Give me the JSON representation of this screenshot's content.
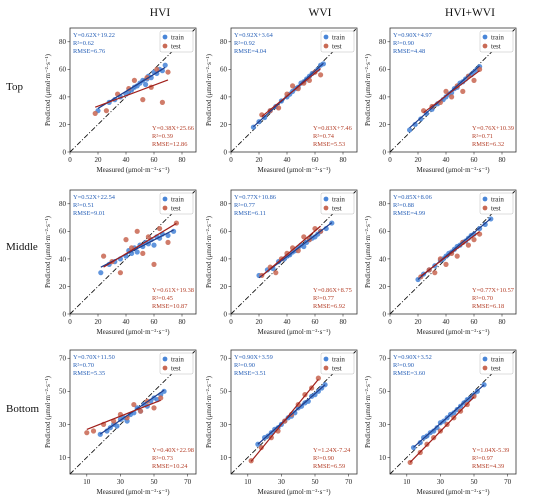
{
  "columns": [
    "HVI",
    "WVI",
    "HVI+WVI"
  ],
  "rows": [
    "Top",
    "Middle",
    "Bottom"
  ],
  "legend": {
    "train": "train",
    "test": "test"
  },
  "colors": {
    "train_point": "#4a86d8",
    "test_point": "#c96a55",
    "train_line": "#1f3d8c",
    "test_line": "#a01f1a",
    "reference": "#111111"
  },
  "axis_text": {
    "xlabel": "Measured (μmol·m⁻²·s⁻¹)",
    "ylabel": "Predicted (μmol·m⁻²·s⁻¹)"
  },
  "chart_data": [
    {
      "row": "Top",
      "column": "HVI",
      "type": "scatter",
      "lim": [
        0,
        90
      ],
      "ticks": [
        0,
        20,
        40,
        60,
        80
      ],
      "train": {
        "equation": "Y=0.62X+19.22",
        "r2": "R²=0.62",
        "rmse": "RMSE=6.76",
        "slope": 0.62,
        "intercept": 19.22,
        "x": [
          20,
          28,
          32,
          36,
          40,
          42,
          44,
          46,
          48,
          50,
          52,
          54,
          55,
          56,
          58,
          60,
          62,
          64,
          66,
          68
        ],
        "y": [
          30,
          36,
          38,
          40,
          42,
          44,
          45,
          47,
          48,
          50,
          52,
          49,
          53,
          55,
          54,
          58,
          57,
          60,
          59,
          63
        ]
      },
      "test": {
        "equation": "Y=0.38X+25.66",
        "r2": "R²=0.39",
        "rmse": "RMSE=12.86",
        "slope": 0.38,
        "intercept": 25.66,
        "x": [
          18,
          26,
          34,
          42,
          46,
          52,
          55,
          58,
          62,
          66,
          70
        ],
        "y": [
          28,
          30,
          42,
          46,
          52,
          38,
          54,
          47,
          60,
          36,
          58
        ]
      }
    },
    {
      "row": "Top",
      "column": "WVI",
      "type": "scatter",
      "lim": [
        0,
        90
      ],
      "ticks": [
        0,
        20,
        40,
        60,
        80
      ],
      "train": {
        "equation": "Y=0.92X+3.64",
        "r2": "R²=0.92",
        "rmse": "RMSE=4.04",
        "slope": 0.92,
        "intercept": 3.64,
        "x": [
          16,
          20,
          24,
          28,
          32,
          36,
          40,
          42,
          44,
          46,
          48,
          50,
          52,
          54,
          56,
          58,
          60,
          62,
          64,
          66
        ],
        "y": [
          18,
          22,
          25,
          30,
          33,
          37,
          40,
          42,
          44,
          46,
          47,
          50,
          51,
          53,
          55,
          57,
          58,
          60,
          63,
          64
        ]
      },
      "test": {
        "equation": "Y=0.83X+7.46",
        "r2": "R²=0.74",
        "rmse": "RMSE=5.53",
        "slope": 0.83,
        "intercept": 7.46,
        "x": [
          22,
          28,
          34,
          40,
          44,
          48,
          52,
          56,
          60,
          64
        ],
        "y": [
          27,
          30,
          32,
          42,
          48,
          46,
          50,
          52,
          58,
          56
        ]
      }
    },
    {
      "row": "Top",
      "column": "HVI+WVI",
      "type": "scatter",
      "lim": [
        0,
        90
      ],
      "ticks": [
        0,
        20,
        40,
        60,
        80
      ],
      "train": {
        "equation": "Y=0.90X+4.97",
        "r2": "R²=0.90",
        "rmse": "RMSE=4.48",
        "slope": 0.9,
        "intercept": 4.97,
        "x": [
          14,
          18,
          22,
          26,
          30,
          34,
          38,
          40,
          42,
          44,
          46,
          48,
          50,
          52,
          54,
          56,
          58,
          60,
          62,
          64
        ],
        "y": [
          16,
          20,
          24,
          28,
          31,
          35,
          38,
          40,
          42,
          43,
          46,
          47,
          50,
          51,
          53,
          55,
          56,
          58,
          60,
          62
        ]
      },
      "test": {
        "equation": "Y=0.76X+10.39",
        "r2": "R²=0.71",
        "rmse": "RMSE=6.32",
        "slope": 0.76,
        "intercept": 10.39,
        "x": [
          24,
          30,
          36,
          40,
          44,
          48,
          52,
          56,
          60,
          64
        ],
        "y": [
          30,
          33,
          36,
          44,
          40,
          48,
          44,
          55,
          52,
          60
        ]
      }
    },
    {
      "row": "Middle",
      "column": "HVI",
      "type": "scatter",
      "lim": [
        0,
        90
      ],
      "ticks": [
        0,
        20,
        40,
        60,
        80
      ],
      "train": {
        "equation": "Y=0.52X+22.54",
        "r2": "R²=0.51",
        "rmse": "RMSE=9.01",
        "slope": 0.52,
        "intercept": 22.54,
        "x": [
          22,
          28,
          32,
          36,
          40,
          42,
          44,
          46,
          48,
          50,
          52,
          54,
          56,
          58,
          60,
          62,
          64,
          66,
          70,
          74
        ],
        "y": [
          30,
          36,
          38,
          40,
          42,
          46,
          44,
          48,
          45,
          50,
          49,
          52,
          51,
          54,
          50,
          56,
          55,
          58,
          57,
          60
        ]
      },
      "test": {
        "equation": "Y=0.61X+19.38",
        "r2": "R²=0.45",
        "rmse": "RMSE=10.87",
        "slope": 0.61,
        "intercept": 19.38,
        "x": [
          24,
          30,
          36,
          40,
          44,
          48,
          52,
          56,
          60,
          64,
          70,
          76
        ],
        "y": [
          42,
          38,
          30,
          54,
          48,
          60,
          44,
          56,
          36,
          62,
          52,
          66
        ]
      }
    },
    {
      "row": "Middle",
      "column": "WVI",
      "type": "scatter",
      "lim": [
        0,
        90
      ],
      "ticks": [
        0,
        20,
        40,
        60,
        80
      ],
      "train": {
        "equation": "Y=0.77X+10.86",
        "r2": "R²=0.77",
        "rmse": "RMSE=6.11",
        "slope": 0.77,
        "intercept": 10.86,
        "x": [
          20,
          26,
          30,
          34,
          38,
          40,
          42,
          44,
          46,
          48,
          50,
          52,
          54,
          56,
          58,
          60,
          62,
          64,
          68,
          72
        ],
        "y": [
          28,
          32,
          33,
          38,
          40,
          42,
          43,
          45,
          46,
          48,
          50,
          49,
          52,
          54,
          55,
          56,
          58,
          60,
          62,
          66
        ]
      },
      "test": {
        "equation": "Y=0.86X+8.75",
        "r2": "R²=0.77",
        "rmse": "RMSE=6.92",
        "slope": 0.86,
        "intercept": 8.75,
        "x": [
          22,
          28,
          32,
          36,
          40,
          44,
          48,
          52,
          56,
          60,
          64
        ],
        "y": [
          28,
          34,
          30,
          40,
          44,
          48,
          46,
          56,
          54,
          62,
          60
        ]
      }
    },
    {
      "row": "Middle",
      "column": "HVI+WVI",
      "type": "scatter",
      "lim": [
        0,
        90
      ],
      "ticks": [
        0,
        20,
        40,
        60,
        80
      ],
      "train": {
        "equation": "Y=0.85X+8.06",
        "r2": "R²=0.88",
        "rmse": "RMSE=4.99",
        "slope": 0.85,
        "intercept": 8.06,
        "x": [
          20,
          24,
          28,
          32,
          36,
          38,
          40,
          42,
          44,
          46,
          48,
          50,
          52,
          54,
          56,
          58,
          60,
          64,
          68,
          72
        ],
        "y": [
          25,
          29,
          32,
          35,
          39,
          40,
          42,
          44,
          45,
          47,
          49,
          50,
          52,
          53,
          55,
          57,
          58,
          62,
          65,
          69
        ]
      },
      "test": {
        "equation": "Y=0.77X+10.57",
        "r2": "R²=0.70",
        "rmse": "RMSE=6.18",
        "slope": 0.77,
        "intercept": 10.57,
        "x": [
          22,
          28,
          32,
          36,
          40,
          44,
          48,
          52,
          56,
          60,
          64
        ],
        "y": [
          27,
          32,
          30,
          40,
          36,
          44,
          42,
          52,
          50,
          54,
          58
        ]
      }
    },
    {
      "row": "Bottom",
      "column": "HVI",
      "type": "scatter",
      "lim": [
        0,
        75
      ],
      "ticks": [
        10,
        30,
        50,
        70
      ],
      "train": {
        "equation": "Y=0.70X+11.50",
        "r2": "R²=0.70",
        "rmse": "RMSE=5.35",
        "slope": 0.7,
        "intercept": 11.5,
        "x": [
          18,
          22,
          24,
          26,
          28,
          30,
          32,
          34,
          36,
          38,
          40,
          42,
          44,
          46,
          48,
          50,
          52,
          54,
          56
        ],
        "y": [
          24,
          26,
          28,
          30,
          29,
          33,
          34,
          32,
          36,
          37,
          40,
          38,
          42,
          41,
          44,
          46,
          45,
          48,
          50
        ]
      },
      "test": {
        "equation": "Y=0.40X+22.98",
        "r2": "R²=0.73",
        "rmse": "RMSE=10.24",
        "slope": 0.4,
        "intercept": 22.98,
        "x": [
          10,
          14,
          20,
          26,
          30,
          34,
          38,
          42,
          46,
          50,
          54
        ],
        "y": [
          25,
          26,
          30,
          32,
          36,
          34,
          42,
          38,
          44,
          40,
          46
        ]
      }
    },
    {
      "row": "Bottom",
      "column": "WVI",
      "type": "scatter",
      "lim": [
        0,
        75
      ],
      "ticks": [
        10,
        30,
        50,
        70
      ],
      "train": {
        "equation": "Y=0.90X+3.59",
        "r2": "R²=0.90",
        "rmse": "RMSE=3.51",
        "slope": 0.9,
        "intercept": 3.59,
        "x": [
          16,
          20,
          22,
          24,
          26,
          28,
          30,
          32,
          34,
          36,
          38,
          40,
          42,
          44,
          46,
          48,
          50,
          52,
          54,
          56
        ],
        "y": [
          18,
          22,
          23,
          25,
          27,
          28,
          30,
          32,
          34,
          35,
          37,
          40,
          41,
          43,
          44,
          47,
          48,
          50,
          52,
          54
        ]
      },
      "test": {
        "equation": "Y=1.24X-7.24",
        "r2": "R²=0.90",
        "rmse": "RMSE=6.59",
        "slope": 1.24,
        "intercept": -7.24,
        "x": [
          12,
          18,
          24,
          28,
          32,
          36,
          40,
          44,
          48,
          52
        ],
        "y": [
          8,
          16,
          22,
          26,
          32,
          36,
          42,
          48,
          52,
          58
        ]
      }
    },
    {
      "row": "Bottom",
      "column": "HVI+WVI",
      "type": "scatter",
      "lim": [
        0,
        75
      ],
      "ticks": [
        10,
        30,
        50,
        70
      ],
      "train": {
        "equation": "Y=0.90X+3.52",
        "r2": "R²=0.90",
        "rmse": "RMSE=3.60",
        "slope": 0.9,
        "intercept": 3.52,
        "x": [
          14,
          18,
          20,
          22,
          24,
          26,
          28,
          30,
          32,
          34,
          36,
          38,
          40,
          42,
          44,
          46,
          48,
          50,
          52,
          56
        ],
        "y": [
          16,
          19,
          22,
          23,
          25,
          26,
          28,
          31,
          32,
          34,
          36,
          37,
          39,
          41,
          43,
          45,
          46,
          48,
          50,
          54
        ]
      },
      "test": {
        "equation": "Y=1.04X-5.39",
        "r2": "R²=0.97",
        "rmse": "RMSE=4.39",
        "slope": 1.04,
        "intercept": -5.39,
        "x": [
          12,
          18,
          22,
          26,
          30,
          34,
          38,
          42,
          46,
          50
        ],
        "y": [
          7,
          13,
          18,
          22,
          26,
          30,
          34,
          38,
          42,
          47
        ]
      }
    }
  ]
}
